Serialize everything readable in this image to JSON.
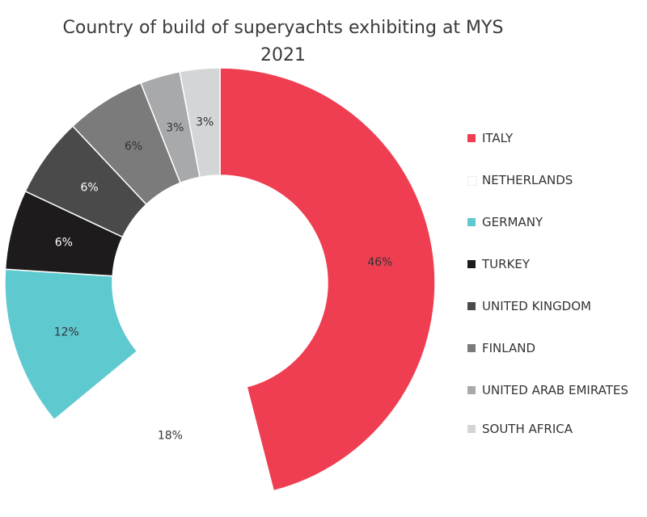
{
  "chart_data": {
    "type": "pie",
    "title": "Country of build of superyachts exhibiting at MYS 2021",
    "categories": [
      "ITALY",
      "NETHERLANDS",
      "GERMANY",
      "TURKEY",
      "UNITED KINGDOM",
      "FINLAND",
      "UNITED ARAB EMIRATES",
      "SOUTH AFRICA"
    ],
    "values": [
      46,
      18,
      12,
      6,
      6,
      6,
      3,
      3
    ],
    "labels": [
      "46%",
      "18%",
      "12%",
      "6%",
      "6%",
      "6%",
      "3%",
      "3%"
    ],
    "colors": [
      "#ef3e52",
      "#ffffff",
      "#5fc9d0",
      "#1e1b1c",
      "#4a4a4a",
      "#7b7b7b",
      "#a8a9ab",
      "#d4d5d7"
    ],
    "label_colors": [
      "#333333",
      "#333333",
      "#333333",
      "#ffffff",
      "#ffffff",
      "#333333",
      "#333333",
      "#333333"
    ],
    "legend_position": "right",
    "donut": true
  }
}
